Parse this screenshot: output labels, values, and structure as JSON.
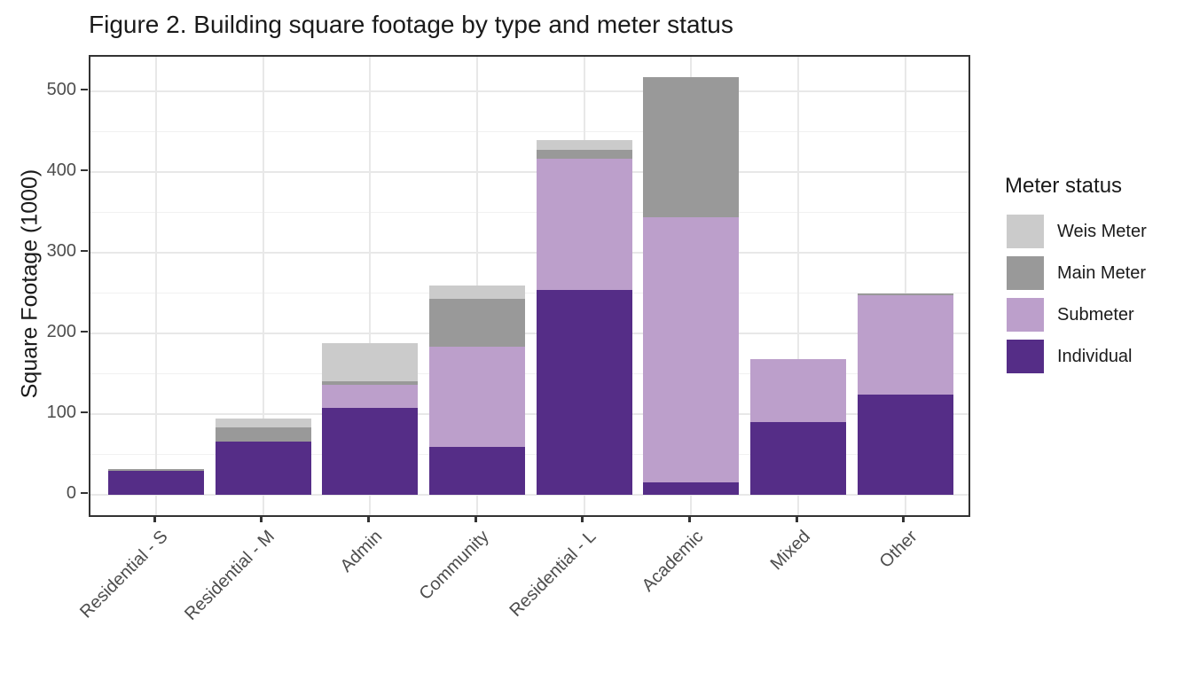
{
  "chart_data": {
    "type": "bar",
    "stacked": true,
    "title": "Figure 2. Building square footage by type and meter status",
    "xlabel": "",
    "ylabel": "Square Footage (1000)",
    "ylim": [
      0,
      543
    ],
    "yticks": [
      0,
      100,
      200,
      300,
      400,
      500
    ],
    "minor_grid_step": 50,
    "grid": "on",
    "legend_title": "Meter status",
    "legend_position": "right",
    "legend_order": [
      "Weis Meter",
      "Main Meter",
      "Submeter",
      "Individual"
    ],
    "categories": [
      "Residential - S",
      "Residential - M",
      "Admin",
      "Community",
      "Residential - L",
      "Academic",
      "Mixed",
      "Other"
    ],
    "series": [
      {
        "name": "Individual",
        "color": "#552D87",
        "values": [
          30,
          66,
          108,
          59,
          254,
          15,
          90,
          124
        ]
      },
      {
        "name": "Submeter",
        "color": "#BC9FCB",
        "values": [
          0,
          0,
          28,
          125,
          163,
          329,
          78,
          123
        ]
      },
      {
        "name": "Main Meter",
        "color": "#999999",
        "values": [
          2,
          18,
          5,
          59,
          11,
          174,
          0,
          3
        ]
      },
      {
        "name": "Weis Meter",
        "color": "#CBCBCB",
        "values": [
          0,
          11,
          47,
          16,
          12,
          0,
          0,
          0
        ]
      }
    ],
    "totals": [
      32,
      95,
      188,
      259,
      440,
      518,
      168,
      250
    ]
  }
}
